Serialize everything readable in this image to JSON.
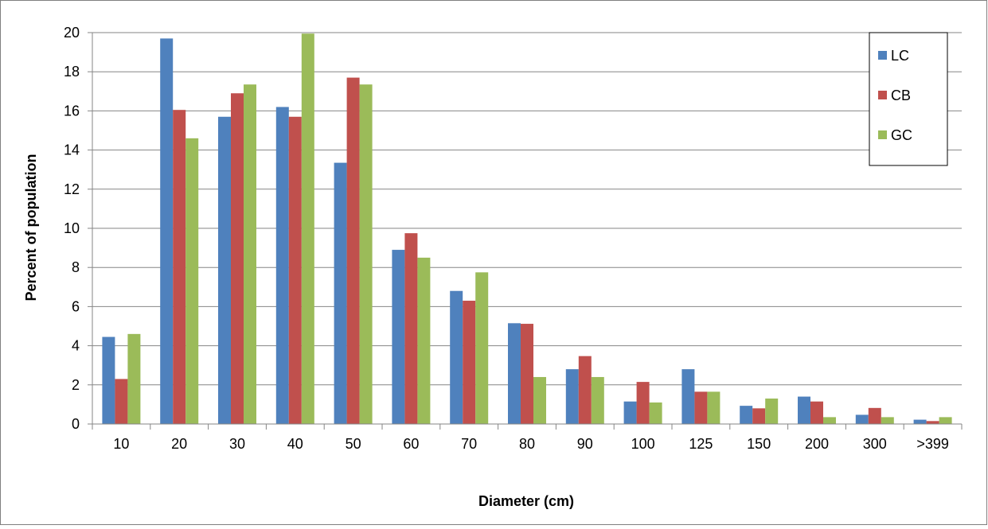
{
  "chart_data": {
    "type": "bar",
    "title": "",
    "xlabel": "Diameter (cm)",
    "ylabel": "Percent of population",
    "categories": [
      "10",
      "20",
      "30",
      "40",
      "50",
      "60",
      "70",
      "80",
      "90",
      "100",
      "125",
      "150",
      "200",
      "300",
      ">399"
    ],
    "ylim": [
      0,
      20
    ],
    "yticks": [
      "0",
      "2",
      "4",
      "6",
      "8",
      "10",
      "12",
      "14",
      "16",
      "18",
      "20"
    ],
    "grid": true,
    "legend_position": "top-right",
    "series": [
      {
        "name": "LC",
        "color": "#4F81BD",
        "values": [
          4.45,
          19.7,
          15.7,
          16.2,
          13.35,
          8.9,
          6.8,
          5.15,
          2.8,
          1.15,
          2.8,
          0.93,
          1.4,
          0.47,
          0.22
        ]
      },
      {
        "name": "CB",
        "color": "#C0504D",
        "values": [
          2.3,
          16.05,
          16.9,
          15.7,
          17.7,
          9.75,
          6.3,
          5.12,
          3.47,
          2.15,
          1.65,
          0.8,
          1.15,
          0.82,
          0.15
        ]
      },
      {
        "name": "GC",
        "color": "#9BBB59",
        "values": [
          4.6,
          14.6,
          17.35,
          19.95,
          17.35,
          8.5,
          7.75,
          2.4,
          2.4,
          1.1,
          1.65,
          1.3,
          0.35,
          0.35,
          0.35
        ]
      }
    ]
  }
}
